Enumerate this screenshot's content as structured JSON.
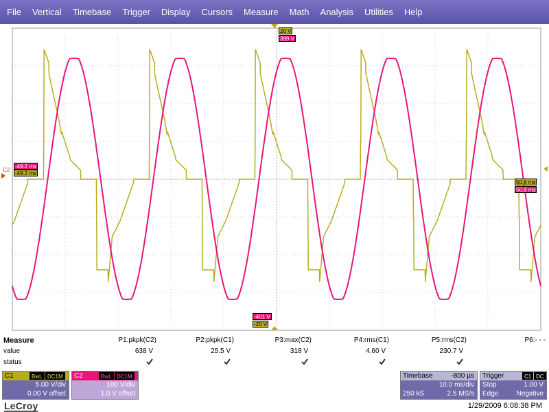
{
  "menu": [
    "File",
    "Vertical",
    "Timebase",
    "Trigger",
    "Display",
    "Cursors",
    "Measure",
    "Math",
    "Analysis",
    "Utilities",
    "Help"
  ],
  "colors": {
    "c1": "#b6ad1e",
    "c2": "#e6157a",
    "menubar": "#6b63b8",
    "grid": "#c8c8c8"
  },
  "markers": {
    "top_c1": "20 V",
    "top_c2": "399 V",
    "bottom_c2": "-401 V",
    "bottom_c1": "-20 V",
    "left_c2_time": "-49.2 ms",
    "left_c1_time": "-49.2 ms",
    "right_c1_time": "50.8 ms",
    "right_c2_time": "50.8 ms",
    "left_channel_label": "C2"
  },
  "measure": {
    "title": "Measure",
    "value_label": "value",
    "status_label": "status",
    "params": [
      {
        "name": "P1:pkpk(C2)",
        "value": "638 V"
      },
      {
        "name": "P2:pkpk(C1)",
        "value": "25.5 V"
      },
      {
        "name": "P3:max(C2)",
        "value": "318 V"
      },
      {
        "name": "P4:rms(C1)",
        "value": "4.60 V"
      },
      {
        "name": "P5:rms(C2)",
        "value": "230.7 V"
      },
      {
        "name": "P6:- - -",
        "value": ""
      }
    ]
  },
  "c1": {
    "label": "C1",
    "tags": [
      "BwL",
      "DC1M"
    ],
    "vdiv": "5.00 V/div",
    "offset": "0.00 V offset"
  },
  "c2": {
    "label": "C2",
    "tags": [
      "BwL",
      "DC1M"
    ],
    "vdiv": "100 V/div",
    "offset": "1.0 V offset"
  },
  "timebase": {
    "label": "Timebase",
    "delay": "-800 µs",
    "tdiv": "10.0 ms/div",
    "samples": "250 kS",
    "rate": "2.5 MS/s"
  },
  "trigger": {
    "label": "Trigger",
    "tags": [
      "C1",
      "DC"
    ],
    "mode": "Stop",
    "level": "1.00 V",
    "type": "Edge",
    "slope": "Negative"
  },
  "footer": {
    "logo": "LeCroy",
    "datetime": "1/29/2009 6:08:38 PM"
  },
  "chart_data": {
    "type": "line",
    "x_unit": "ms",
    "xlim": [
      -49.2,
      50.8
    ],
    "series": [
      {
        "name": "C2",
        "unit": "V",
        "ylim": [
          -401,
          399
        ],
        "shape": "sine",
        "period_ms": 20,
        "peak": 318,
        "pkpk": 638
      },
      {
        "name": "C1",
        "unit": "V",
        "ylim": [
          -20,
          20
        ],
        "shape": "pulse-pair",
        "period_ms": 20,
        "pkpk": 25.5
      }
    ]
  }
}
